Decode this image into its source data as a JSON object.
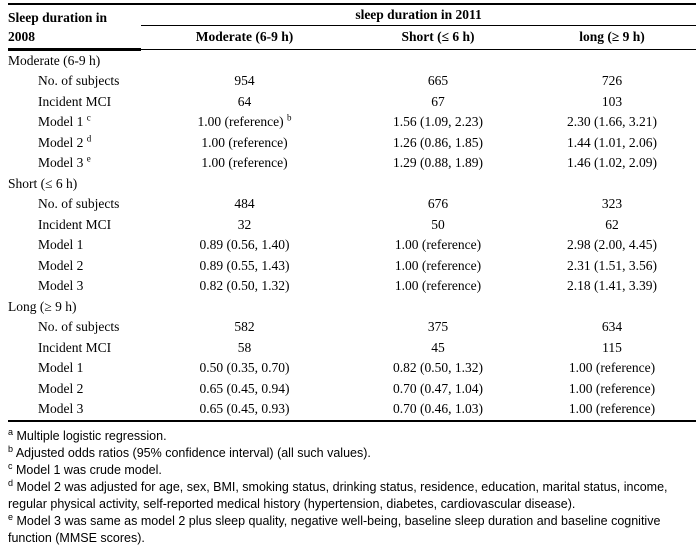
{
  "table": {
    "stub_header": {
      "line1": "Sleep duration in",
      "line2": "2008"
    },
    "span_header": "sleep duration in 2011",
    "columns": [
      "Moderate (6-9 h)",
      "Short (≤ 6 h)",
      "long (≥ 9 h)"
    ],
    "groups": [
      {
        "label": "Moderate (6-9 h)",
        "rows": [
          {
            "label": "No. of subjects",
            "values": [
              "954",
              "665",
              "726"
            ]
          },
          {
            "label": "Incident MCI",
            "values": [
              "64",
              "67",
              "103"
            ]
          },
          {
            "label": "Model 1",
            "label_sup": "c",
            "values": [
              "1.00 (reference)",
              "1.56 (1.09, 2.23)",
              "2.30 (1.66, 3.21)"
            ],
            "value0_sup": "b"
          },
          {
            "label": "Model 2",
            "label_sup": "d",
            "values": [
              "1.00 (reference)",
              "1.26 (0.86, 1.85)",
              "1.44 (1.01, 2.06)"
            ]
          },
          {
            "label": "Model 3",
            "label_sup": "e",
            "values": [
              "1.00 (reference)",
              "1.29 (0.88, 1.89)",
              "1.46 (1.02, 2.09)"
            ]
          }
        ]
      },
      {
        "label": "Short (≤ 6 h)",
        "rows": [
          {
            "label": "No. of subjects",
            "values": [
              "484",
              "676",
              "323"
            ]
          },
          {
            "label": "Incident MCI",
            "values": [
              "32",
              "50",
              "62"
            ]
          },
          {
            "label": "Model 1",
            "values": [
              "0.89 (0.56, 1.40)",
              "1.00 (reference)",
              "2.98 (2.00, 4.45)"
            ]
          },
          {
            "label": "Model 2",
            "values": [
              "0.89 (0.55, 1.43)",
              "1.00 (reference)",
              "2.31 (1.51, 3.56)"
            ]
          },
          {
            "label": "Model 3",
            "values": [
              "0.82 (0.50, 1.32)",
              "1.00 (reference)",
              "2.18 (1.41, 3.39)"
            ]
          }
        ]
      },
      {
        "label": "Long (≥ 9 h)",
        "rows": [
          {
            "label": "No. of subjects",
            "values": [
              "582",
              "375",
              "634"
            ]
          },
          {
            "label": "Incident MCI",
            "values": [
              "58",
              "45",
              "115"
            ]
          },
          {
            "label": "Model 1",
            "values": [
              "0.50 (0.35, 0.70)",
              "0.82 (0.50, 1.32)",
              "1.00 (reference)"
            ]
          },
          {
            "label": "Model 2",
            "values": [
              "0.65 (0.45, 0.94)",
              "0.70 (0.47, 1.04)",
              "1.00 (reference)"
            ]
          },
          {
            "label": "Model 3",
            "values": [
              "0.65 (0.45, 0.93)",
              "0.70 (0.46, 1.03)",
              "1.00 (reference)"
            ]
          }
        ]
      }
    ]
  },
  "footnotes": [
    {
      "marker": "a",
      "text": "Multiple logistic regression."
    },
    {
      "marker": "b",
      "text": "Adjusted odds ratios (95% confidence interval) (all such values)."
    },
    {
      "marker": "c",
      "text": "Model 1 was crude model."
    },
    {
      "marker": "d",
      "text": "Model 2 was adjusted for age, sex, BMI, smoking status, drinking status, residence, education, marital status, income, regular physical activity, self-reported medical history (hypertension, diabetes, cardiovascular disease)."
    },
    {
      "marker": "e",
      "text": "Model 3 was same as model 2 plus sleep quality, negative well-being, baseline sleep duration and baseline cognitive function (MMSE scores)."
    }
  ]
}
